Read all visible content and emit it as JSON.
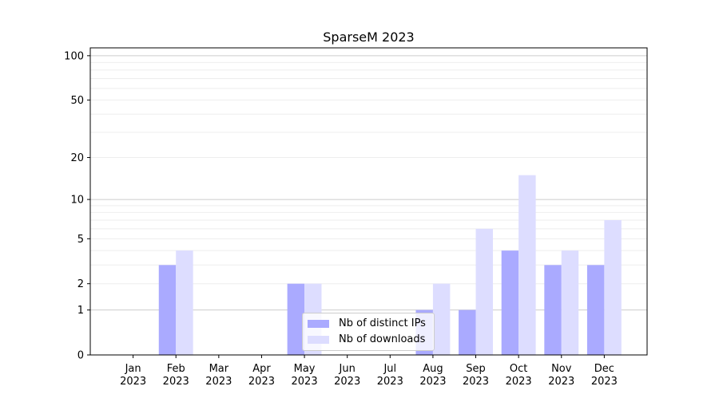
{
  "chart_data": {
    "type": "bar",
    "title": "SparseM 2023",
    "categories": [
      "Jan\n2023",
      "Feb\n2023",
      "Mar\n2023",
      "Apr\n2023",
      "May\n2023",
      "Jun\n2023",
      "Jul\n2023",
      "Aug\n2023",
      "Sep\n2023",
      "Oct\n2023",
      "Nov\n2023",
      "Dec\n2023"
    ],
    "series": [
      {
        "name": "Nb of distinct IPs",
        "color": "#aaaaff",
        "values": [
          0,
          3,
          0,
          0,
          2,
          0,
          0,
          1,
          1,
          4,
          3,
          3
        ]
      },
      {
        "name": "Nb of downloads",
        "color": "#ddddff",
        "values": [
          0,
          4,
          0,
          0,
          2,
          0,
          0,
          2,
          6,
          15,
          4,
          7
        ]
      }
    ],
    "yscale": "log(1+y)",
    "yticks": [
      0,
      1,
      2,
      5,
      10,
      20,
      50,
      100
    ],
    "ylim": [
      0,
      113
    ],
    "grid": true,
    "legend": "lower-center"
  }
}
